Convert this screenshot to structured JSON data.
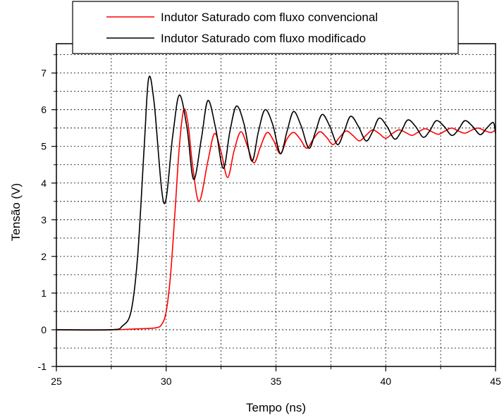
{
  "chart_data": {
    "type": "line",
    "xlabel": "Tempo (ns)",
    "ylabel": "Tensão (V)",
    "xlim": [
      25,
      45
    ],
    "ylim": [
      -1,
      7.8
    ],
    "x_ticks": [
      "25",
      "30",
      "35",
      "40",
      "45"
    ],
    "y_ticks": [
      "-1",
      "0",
      "1",
      "2",
      "3",
      "4",
      "5",
      "6",
      "7"
    ],
    "x_tick_values": [
      25,
      30,
      35,
      40,
      45
    ],
    "y_tick_values": [
      -1,
      0,
      1,
      2,
      3,
      4,
      5,
      6,
      7
    ],
    "grid": true,
    "legend_position": "top-right",
    "series": [
      {
        "name": "Indutor Saturado com fluxo convencional",
        "color": "#ff0000",
        "x": [
          25,
          27.5,
          28.5,
          29.5,
          29.8,
          30.0,
          30.2,
          30.4,
          30.6,
          30.8,
          31.0,
          31.2,
          31.5,
          31.9,
          32.2,
          32.5,
          32.8,
          33.1,
          33.4,
          33.7,
          34.0,
          34.3,
          34.6,
          34.9,
          35.2,
          35.5,
          35.8,
          36.1,
          36.4,
          36.7,
          37.0,
          37.3,
          37.6,
          37.9,
          38.2,
          38.5,
          38.8,
          39.1,
          39.4,
          39.7,
          40.0,
          40.3,
          40.6,
          40.9,
          41.2,
          41.5,
          41.8,
          42.1,
          42.4,
          42.7,
          43.0,
          43.3,
          43.6,
          43.9,
          44.2,
          44.5,
          44.8,
          45
        ],
        "y": [
          0,
          0,
          0.02,
          0.05,
          0.15,
          0.5,
          1.5,
          3.2,
          5.0,
          6.0,
          5.6,
          4.5,
          3.5,
          4.6,
          5.35,
          4.85,
          4.15,
          4.9,
          5.4,
          5.0,
          4.55,
          5.0,
          5.38,
          5.15,
          4.8,
          5.2,
          5.38,
          5.2,
          4.95,
          5.2,
          5.4,
          5.25,
          5.05,
          5.25,
          5.42,
          5.3,
          5.15,
          5.3,
          5.45,
          5.35,
          5.22,
          5.35,
          5.45,
          5.38,
          5.3,
          5.4,
          5.48,
          5.4,
          5.33,
          5.42,
          5.5,
          5.42,
          5.36,
          5.44,
          5.5,
          5.43,
          5.38,
          5.45
        ]
      },
      {
        "name": "Indutor Saturado com fluxo modificado",
        "color": "#000000",
        "x": [
          25,
          27.5,
          28.0,
          28.4,
          28.7,
          29.0,
          29.2,
          29.45,
          29.9,
          30.3,
          30.6,
          30.95,
          31.25,
          31.6,
          31.9,
          32.25,
          32.6,
          32.9,
          33.2,
          33.55,
          33.9,
          34.2,
          34.5,
          34.85,
          35.2,
          35.5,
          35.8,
          36.15,
          36.5,
          36.8,
          37.1,
          37.45,
          37.8,
          38.1,
          38.4,
          38.75,
          39.1,
          39.4,
          39.7,
          40.05,
          40.4,
          40.7,
          41.0,
          41.35,
          41.7,
          42.0,
          42.3,
          42.65,
          43.0,
          43.3,
          43.6,
          43.95,
          44.3,
          44.6,
          44.9,
          45
        ],
        "y": [
          0,
          0,
          0.1,
          0.5,
          2.0,
          5.0,
          6.85,
          6.2,
          3.45,
          5.3,
          6.4,
          5.5,
          4.1,
          5.2,
          6.25,
          5.5,
          4.4,
          5.4,
          6.1,
          5.6,
          4.6,
          5.4,
          6.0,
          5.6,
          4.8,
          5.4,
          5.95,
          5.55,
          4.95,
          5.4,
          5.87,
          5.55,
          5.05,
          5.4,
          5.82,
          5.55,
          5.15,
          5.4,
          5.77,
          5.55,
          5.2,
          5.4,
          5.72,
          5.55,
          5.25,
          5.42,
          5.7,
          5.55,
          5.3,
          5.45,
          5.7,
          5.55,
          5.32,
          5.5,
          5.65,
          5.35
        ]
      }
    ]
  }
}
